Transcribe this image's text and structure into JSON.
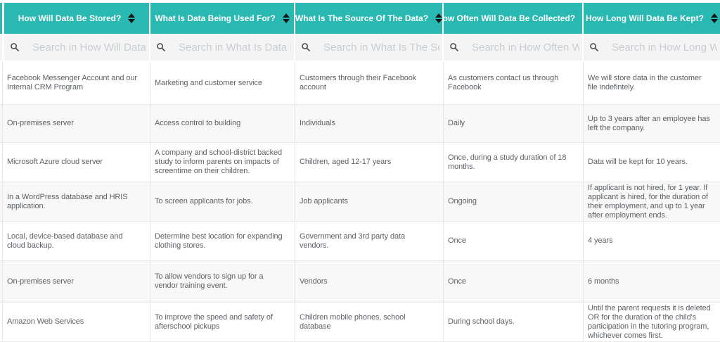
{
  "table": {
    "columns": [
      {
        "label": "How Will Data Be Stored?",
        "search_placeholder": "Search in How Will Data Be",
        "sort_icon": "sort-arrows-icon",
        "search_icon": "magnifier-icon"
      },
      {
        "label": "What Is Data Being Used For?",
        "search_placeholder": "Search in What Is Data Being",
        "sort_icon": "sort-arrows-icon",
        "search_icon": "magnifier-icon"
      },
      {
        "label": "What Is The Source Of The Data?",
        "search_placeholder": "Search in What Is The Sourc",
        "sort_icon": "sort-arrows-icon",
        "search_icon": "magnifier-icon"
      },
      {
        "label": "How Often Will Data Be Collected?",
        "search_placeholder": "Search in How Often Will Da",
        "sort_icon": "sort-arrows-icon",
        "search_icon": "magnifier-icon"
      },
      {
        "label": "How Long Will Data Be Kept?",
        "search_placeholder": "Search in How Long Will Da",
        "sort_icon": "sort-arrows-icon",
        "search_icon": "magnifier-icon"
      }
    ],
    "rows": [
      [
        "Facebook Messenger Account and our Internal CRM Program",
        "Marketing and customer service",
        "Customers through their Facebook account",
        "As customers contact us through Facebook",
        "We will store data in the customer file indefintely."
      ],
      [
        "On-premises server",
        "Access control to building",
        "Individuals",
        "Daily",
        "Up to 3 years after an employee has left the company."
      ],
      [
        "Microsoft Azure cloud server",
        " A company and school-district backed study to inform parents on impacts of screentime on their children.",
        "Children, aged 12-17 years",
        "Once, during a study duration of 18 months.",
        "Data will be kept for 10 years."
      ],
      [
        "In a WordPress database and HRIS application.",
        "To screen applicants for jobs.",
        "Job applicants",
        "Ongoing",
        "If applicant is not hired, for 1 year. If applicant is hired, for the duration of their employment, and up to 1 year after employment ends."
      ],
      [
        "Local, device-based database and cloud backup.",
        "Determine best location for expanding clothing stores.",
        "Government and 3rd party data vendors.",
        "Once",
        "4 years"
      ],
      [
        "On-premises server",
        "To allow vendors to sign up for a vendor training event.",
        "Vendors",
        "Once",
        "6 months"
      ],
      [
        "Amazon Web Services",
        "To improve the speed and safety of afterschool pickups",
        "Children mobile phones, school database",
        "During school days.",
        "Until the parent requests it is deleted OR for the duration of the child's participation in the tutoring program, whichever comes first."
      ]
    ]
  },
  "colors": {
    "header_bg": "#2ab9b2",
    "header_text": "#ffffff",
    "sort_icon": "#141414",
    "search_row_bg": "#f4f4f4",
    "placeholder_text": "#c9cdd1",
    "cell_text": "#5e6266",
    "row_alt_bg": "#f8f8f8",
    "border": "#e8e8e8"
  }
}
